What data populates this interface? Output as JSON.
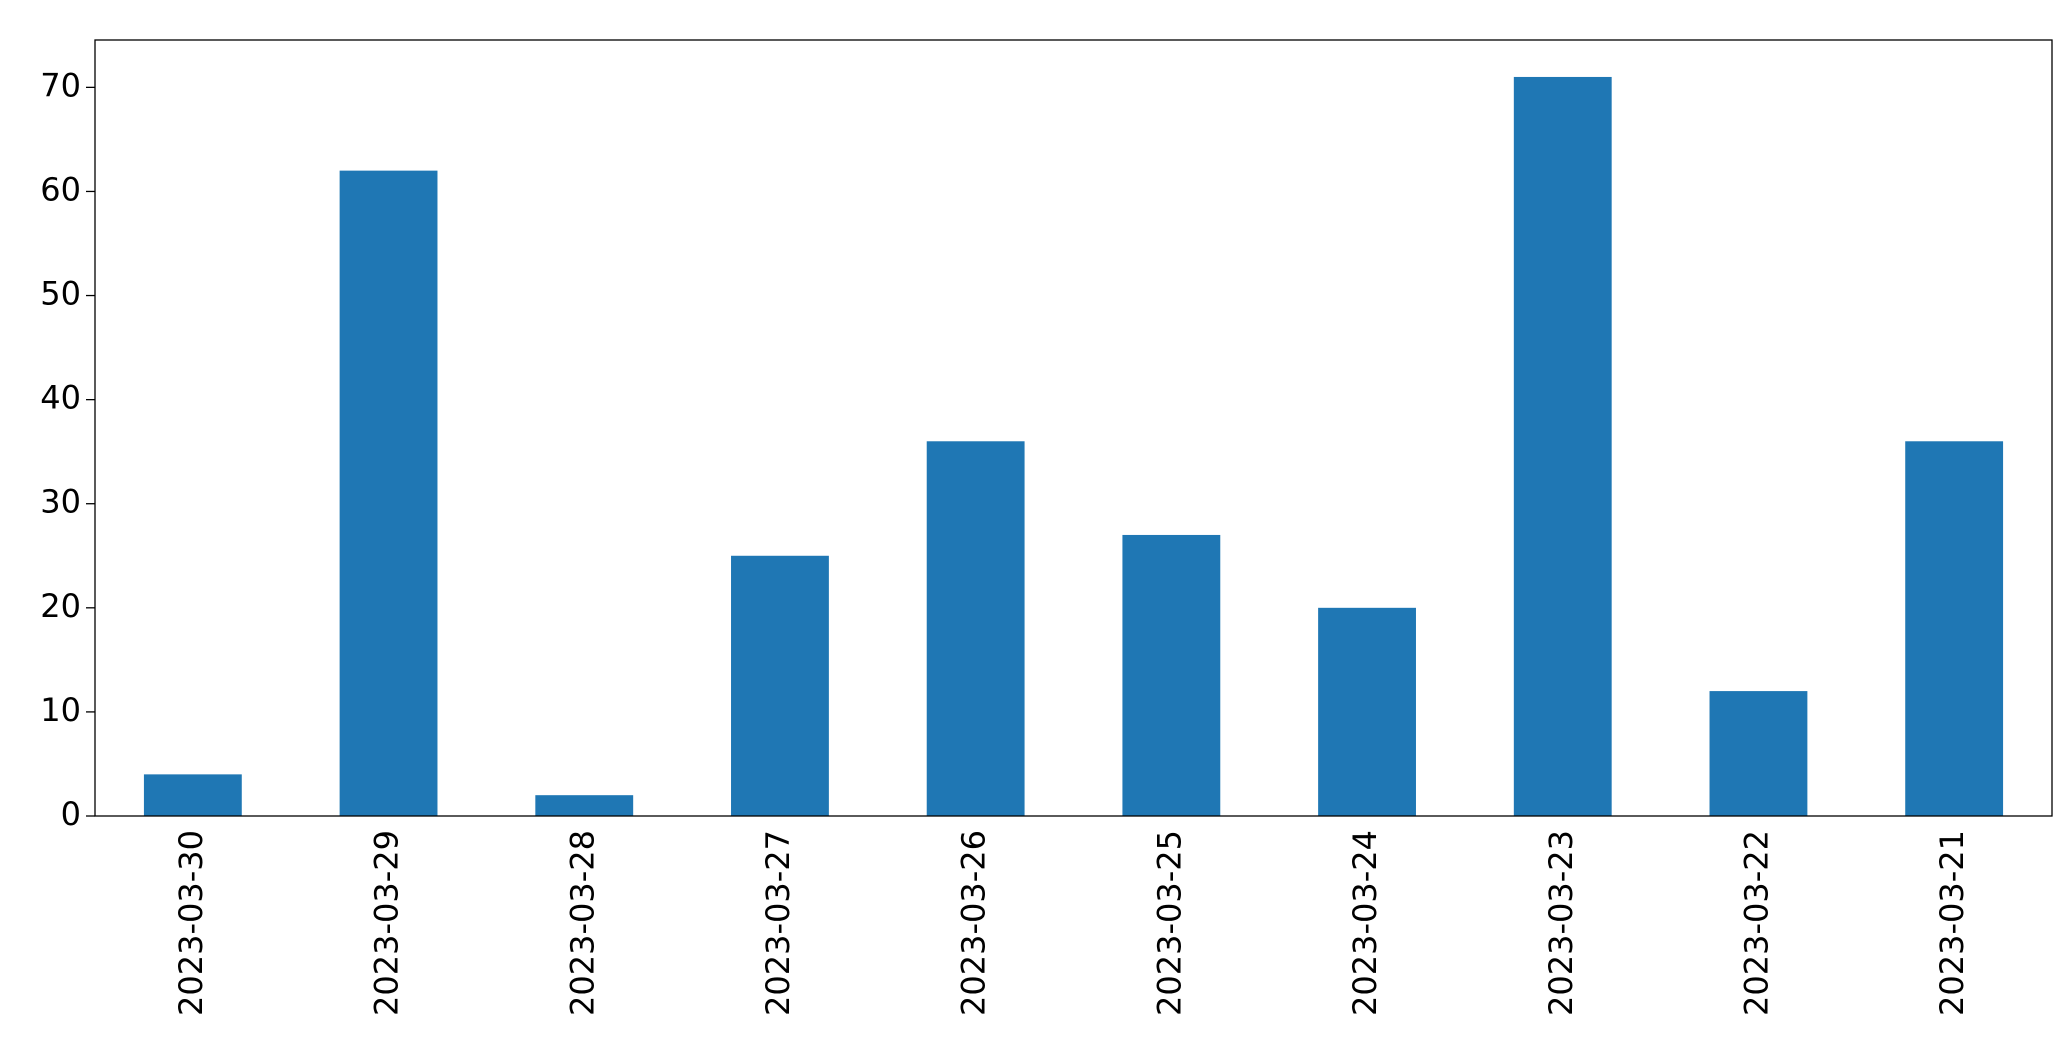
{
  "chart_data": {
    "type": "bar",
    "categories": [
      "2023-03-30",
      "2023-03-29",
      "2023-03-28",
      "2023-03-27",
      "2023-03-26",
      "2023-03-25",
      "2023-03-24",
      "2023-03-23",
      "2023-03-22",
      "2023-03-21"
    ],
    "values": [
      4,
      62,
      2,
      25,
      36,
      27,
      20,
      71,
      12,
      36
    ],
    "color": "#1f77b4",
    "ylim": [
      0,
      74.55
    ],
    "yticks": [
      0,
      10,
      20,
      30,
      40,
      50,
      60,
      70
    ],
    "grid": false
  }
}
